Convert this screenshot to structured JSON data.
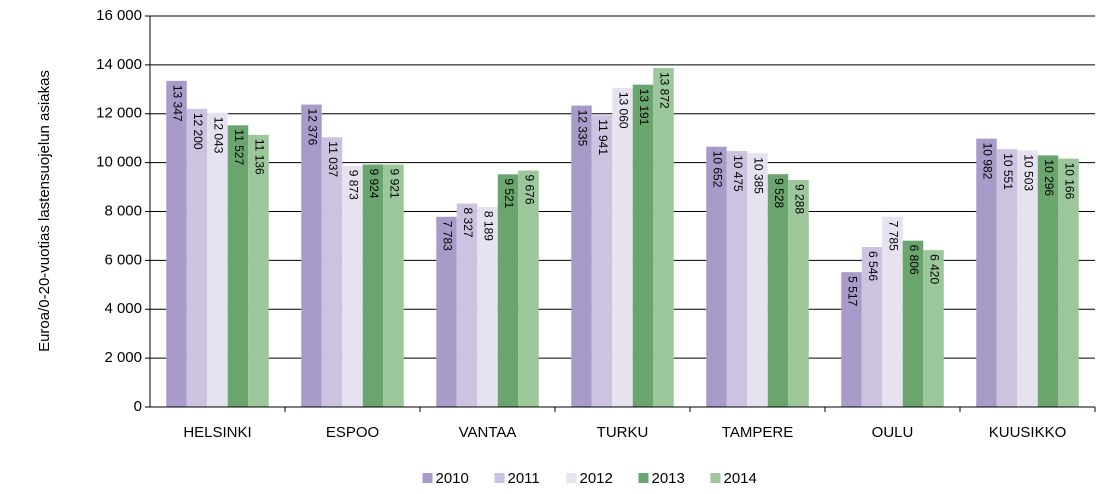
{
  "chart_data": {
    "type": "bar",
    "y_label": "Euroa/0-20-vuotias lastensuojelun asiakas",
    "categories": [
      "HELSINKI",
      "ESPOO",
      "VANTAA",
      "TURKU",
      "TAMPERE",
      "OULU",
      "KUUSIKKO"
    ],
    "series": [
      {
        "name": "2010",
        "color": "#a99bc9",
        "values": [
          13347,
          12376,
          7783,
          12335,
          10652,
          5517,
          10982
        ],
        "value_labels": [
          "13 347",
          "12 376",
          "7 783",
          "12 335",
          "10 652",
          "5 517",
          "10 982"
        ]
      },
      {
        "name": "2011",
        "color": "#cdc3e0",
        "values": [
          12200,
          11037,
          8327,
          11941,
          10475,
          6546,
          10551
        ],
        "value_labels": [
          "12 200",
          "11 037",
          "8 327",
          "11 941",
          "10 475",
          "6 546",
          "10 551"
        ]
      },
      {
        "name": "2012",
        "color": "#e6e2f0",
        "values": [
          12043,
          9873,
          8189,
          13060,
          10385,
          7785,
          10503
        ],
        "value_labels": [
          "12 043",
          "9 873",
          "8 189",
          "13 060",
          "10 385",
          "7 785",
          "10 503"
        ]
      },
      {
        "name": "2013",
        "color": "#6aa56e",
        "values": [
          11527,
          9924,
          9521,
          13191,
          9528,
          6806,
          10296
        ],
        "value_labels": [
          "11 527",
          "9 924",
          "9 521",
          "13 191",
          "9 528",
          "6 806",
          "10 296"
        ]
      },
      {
        "name": "2014",
        "color": "#9cc79b",
        "values": [
          11136,
          9921,
          9676,
          13872,
          9288,
          6420,
          10166
        ],
        "value_labels": [
          "11 136",
          "9 921",
          "9 676",
          "13 872",
          "9 288",
          "6 420",
          "10 166"
        ]
      }
    ],
    "ylim": [
      0,
      16000
    ],
    "yticks": [
      0,
      {
        "value": 2000,
        "label": "2 000"
      },
      {
        "value": 4000,
        "label": "4 000"
      },
      {
        "value": 6000,
        "label": "6 000"
      },
      {
        "value": 8000,
        "label": "8 000"
      },
      {
        "value": 10000,
        "label": "10 000"
      },
      {
        "value": 12000,
        "label": "12 000"
      },
      {
        "value": 14000,
        "label": "14 000"
      },
      {
        "value": 16000,
        "label": "16 000"
      }
    ],
    "grid": true,
    "legend": "bottom"
  }
}
